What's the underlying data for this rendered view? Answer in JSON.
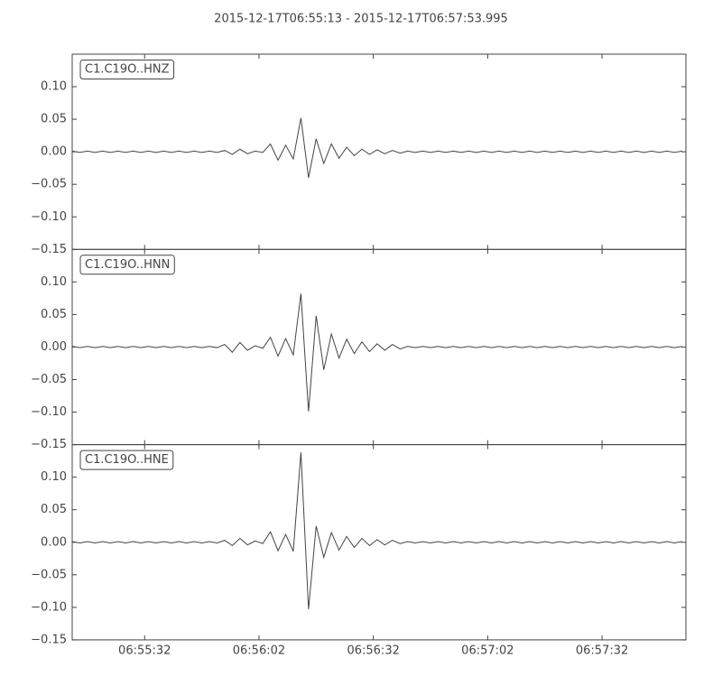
{
  "title": "2015-12-17T06:55:13  -  2015-12-17T06:57:53.995",
  "chart_data": [
    {
      "type": "line",
      "xlim": [
        "06:55:13",
        "06:57:54"
      ],
      "ylim": [
        -0.15,
        0.15
      ],
      "yticks": [
        {
          "value": -0.15,
          "label": "−0.15"
        },
        {
          "value": -0.1,
          "label": "−0.10"
        },
        {
          "value": -0.05,
          "label": "−0.05"
        },
        {
          "value": 0,
          "label": "0.00"
        },
        {
          "value": 0.05,
          "label": "0.05"
        },
        {
          "value": 0.1,
          "label": "0.10"
        }
      ],
      "x": [
        "06:55:13",
        "06:55:15",
        "06:55:17",
        "06:55:19",
        "06:55:21",
        "06:55:23",
        "06:55:25",
        "06:55:27",
        "06:55:29",
        "06:55:31",
        "06:55:33",
        "06:55:35",
        "06:55:37",
        "06:55:39",
        "06:55:41",
        "06:55:43",
        "06:55:45",
        "06:55:47",
        "06:55:49",
        "06:55:51",
        "06:55:53",
        "06:55:55",
        "06:55:57",
        "06:55:59",
        "06:56:01",
        "06:56:03",
        "06:56:05",
        "06:56:07",
        "06:56:09",
        "06:56:11",
        "06:56:13",
        "06:56:15",
        "06:56:17",
        "06:56:19",
        "06:56:21",
        "06:56:23",
        "06:56:25",
        "06:56:27",
        "06:56:29",
        "06:56:31",
        "06:56:33",
        "06:56:35",
        "06:56:37",
        "06:56:39",
        "06:56:41",
        "06:56:43",
        "06:56:45",
        "06:56:47",
        "06:56:49",
        "06:56:51",
        "06:56:53",
        "06:56:55",
        "06:56:57",
        "06:56:59",
        "06:57:01",
        "06:57:03",
        "06:57:05",
        "06:57:07",
        "06:57:09",
        "06:57:11",
        "06:57:13",
        "06:57:15",
        "06:57:17",
        "06:57:19",
        "06:57:21",
        "06:57:23",
        "06:57:25",
        "06:57:27",
        "06:57:29",
        "06:57:31",
        "06:57:33",
        "06:57:35",
        "06:57:37",
        "06:57:39",
        "06:57:41",
        "06:57:43",
        "06:57:45",
        "06:57:47",
        "06:57:49",
        "06:57:51",
        "06:57:53"
      ],
      "series": [
        {
          "name": "C1.C19O..HNZ",
          "color": "#444444",
          "values": [
            0.001,
            -0.001,
            0.001,
            -0.001,
            0.001,
            -0.001,
            0.001,
            -0.001,
            0.001,
            -0.001,
            0.001,
            -0.001,
            0.001,
            -0.001,
            0.001,
            -0.001,
            0.001,
            -0.001,
            0.001,
            -0.001,
            0.002,
            -0.004,
            0.004,
            -0.003,
            0.001,
            -0.001,
            0.012,
            -0.013,
            0.01,
            -0.011,
            0.052,
            -0.04,
            0.02,
            -0.018,
            0.012,
            -0.01,
            0.007,
            -0.006,
            0.004,
            -0.004,
            0.003,
            -0.003,
            0.002,
            -0.002,
            0.001,
            -0.001,
            0.001,
            -0.001,
            0.001,
            -0.001,
            0.001,
            -0.001,
            0.001,
            -0.001,
            0.001,
            -0.001,
            0.001,
            -0.001,
            0.001,
            -0.001,
            0.001,
            -0.001,
            0.001,
            -0.001,
            0.001,
            -0.001,
            0.001,
            -0.001,
            0.001,
            -0.001,
            0.001,
            -0.001,
            0.001,
            -0.001,
            0.001,
            -0.001,
            0.001,
            -0.001,
            0.001,
            -0.001,
            0.001
          ]
        }
      ]
    },
    {
      "type": "line",
      "xlim": [
        "06:55:13",
        "06:57:54"
      ],
      "ylim": [
        -0.15,
        0.15
      ],
      "yticks": [
        {
          "value": -0.15,
          "label": "−0.15"
        },
        {
          "value": -0.1,
          "label": "−0.10"
        },
        {
          "value": -0.05,
          "label": "−0.05"
        },
        {
          "value": 0,
          "label": "0.00"
        },
        {
          "value": 0.05,
          "label": "0.05"
        },
        {
          "value": 0.1,
          "label": "0.10"
        }
      ],
      "x": [
        "06:55:13",
        "06:55:15",
        "06:55:17",
        "06:55:19",
        "06:55:21",
        "06:55:23",
        "06:55:25",
        "06:55:27",
        "06:55:29",
        "06:55:31",
        "06:55:33",
        "06:55:35",
        "06:55:37",
        "06:55:39",
        "06:55:41",
        "06:55:43",
        "06:55:45",
        "06:55:47",
        "06:55:49",
        "06:55:51",
        "06:55:53",
        "06:55:55",
        "06:55:57",
        "06:55:59",
        "06:56:01",
        "06:56:03",
        "06:56:05",
        "06:56:07",
        "06:56:09",
        "06:56:11",
        "06:56:13",
        "06:56:15",
        "06:56:17",
        "06:56:19",
        "06:56:21",
        "06:56:23",
        "06:56:25",
        "06:56:27",
        "06:56:29",
        "06:56:31",
        "06:56:33",
        "06:56:35",
        "06:56:37",
        "06:56:39",
        "06:56:41",
        "06:56:43",
        "06:56:45",
        "06:56:47",
        "06:56:49",
        "06:56:51",
        "06:56:53",
        "06:56:55",
        "06:56:57",
        "06:56:59",
        "06:57:01",
        "06:57:03",
        "06:57:05",
        "06:57:07",
        "06:57:09",
        "06:57:11",
        "06:57:13",
        "06:57:15",
        "06:57:17",
        "06:57:19",
        "06:57:21",
        "06:57:23",
        "06:57:25",
        "06:57:27",
        "06:57:29",
        "06:57:31",
        "06:57:33",
        "06:57:35",
        "06:57:37",
        "06:57:39",
        "06:57:41",
        "06:57:43",
        "06:57:45",
        "06:57:47",
        "06:57:49",
        "06:57:51",
        "06:57:53"
      ],
      "series": [
        {
          "name": "C1.C19O..HNN",
          "color": "#444444",
          "values": [
            0.001,
            -0.001,
            0.001,
            -0.001,
            0.001,
            -0.001,
            0.001,
            -0.001,
            0.001,
            -0.001,
            0.001,
            -0.001,
            0.001,
            -0.001,
            0.001,
            -0.001,
            0.001,
            -0.001,
            0.001,
            -0.001,
            0.004,
            -0.008,
            0.007,
            -0.005,
            0.002,
            -0.002,
            0.015,
            -0.014,
            0.013,
            -0.012,
            0.082,
            -0.099,
            0.048,
            -0.035,
            0.02,
            -0.017,
            0.012,
            -0.01,
            0.008,
            -0.007,
            0.005,
            -0.005,
            0.004,
            -0.003,
            0.001,
            -0.001,
            0.001,
            -0.001,
            0.001,
            -0.001,
            0.001,
            -0.001,
            0.001,
            -0.001,
            0.001,
            -0.001,
            0.001,
            -0.001,
            0.001,
            -0.001,
            0.001,
            -0.001,
            0.001,
            -0.001,
            0.001,
            -0.001,
            0.001,
            -0.001,
            0.001,
            -0.001,
            0.001,
            -0.001,
            0.001,
            -0.001,
            0.001,
            -0.001,
            0.001,
            -0.001,
            0.001,
            -0.001,
            0.001
          ]
        }
      ]
    },
    {
      "type": "line",
      "xlim": [
        "06:55:13",
        "06:57:54"
      ],
      "ylim": [
        -0.15,
        0.15
      ],
      "yticks": [
        {
          "value": -0.15,
          "label": "−0.15"
        },
        {
          "value": -0.1,
          "label": "−0.10"
        },
        {
          "value": -0.05,
          "label": "−0.05"
        },
        {
          "value": 0,
          "label": "0.00"
        },
        {
          "value": 0.05,
          "label": "0.05"
        },
        {
          "value": 0.1,
          "label": "0.10"
        }
      ],
      "xticks": [
        "06:55:32",
        "06:56:02",
        "06:56:32",
        "06:57:02",
        "06:57:32"
      ],
      "x": [
        "06:55:13",
        "06:55:15",
        "06:55:17",
        "06:55:19",
        "06:55:21",
        "06:55:23",
        "06:55:25",
        "06:55:27",
        "06:55:29",
        "06:55:31",
        "06:55:33",
        "06:55:35",
        "06:55:37",
        "06:55:39",
        "06:55:41",
        "06:55:43",
        "06:55:45",
        "06:55:47",
        "06:55:49",
        "06:55:51",
        "06:55:53",
        "06:55:55",
        "06:55:57",
        "06:55:59",
        "06:56:01",
        "06:56:03",
        "06:56:05",
        "06:56:07",
        "06:56:09",
        "06:56:11",
        "06:56:13",
        "06:56:15",
        "06:56:17",
        "06:56:19",
        "06:56:21",
        "06:56:23",
        "06:56:25",
        "06:56:27",
        "06:56:29",
        "06:56:31",
        "06:56:33",
        "06:56:35",
        "06:56:37",
        "06:56:39",
        "06:56:41",
        "06:56:43",
        "06:56:45",
        "06:56:47",
        "06:56:49",
        "06:56:51",
        "06:56:53",
        "06:56:55",
        "06:56:57",
        "06:56:59",
        "06:57:01",
        "06:57:03",
        "06:57:05",
        "06:57:07",
        "06:57:09",
        "06:57:11",
        "06:57:13",
        "06:57:15",
        "06:57:17",
        "06:57:19",
        "06:57:21",
        "06:57:23",
        "06:57:25",
        "06:57:27",
        "06:57:29",
        "06:57:31",
        "06:57:33",
        "06:57:35",
        "06:57:37",
        "06:57:39",
        "06:57:41",
        "06:57:43",
        "06:57:45",
        "06:57:47",
        "06:57:49",
        "06:57:51",
        "06:57:53"
      ],
      "series": [
        {
          "name": "C1.C19O..HNE",
          "color": "#444444",
          "values": [
            0.001,
            -0.001,
            0.001,
            -0.001,
            0.001,
            -0.001,
            0.001,
            -0.001,
            0.001,
            -0.001,
            0.001,
            -0.001,
            0.001,
            -0.001,
            0.001,
            -0.001,
            0.001,
            -0.001,
            0.001,
            -0.001,
            0.003,
            -0.005,
            0.006,
            -0.004,
            0.002,
            -0.002,
            0.016,
            -0.013,
            0.012,
            -0.014,
            0.138,
            -0.103,
            0.025,
            -0.023,
            0.015,
            -0.012,
            0.009,
            -0.008,
            0.006,
            -0.005,
            0.004,
            -0.004,
            0.003,
            -0.002,
            0.001,
            -0.001,
            0.001,
            -0.001,
            0.001,
            -0.001,
            0.001,
            -0.001,
            0.001,
            -0.001,
            0.001,
            -0.001,
            0.001,
            -0.001,
            0.001,
            -0.001,
            0.001,
            -0.001,
            0.001,
            -0.001,
            0.001,
            -0.001,
            0.001,
            -0.001,
            0.001,
            -0.001,
            0.001,
            -0.001,
            0.001,
            -0.001,
            0.001,
            -0.001,
            0.001,
            -0.001,
            0.001,
            -0.001,
            0.001
          ]
        }
      ]
    }
  ]
}
